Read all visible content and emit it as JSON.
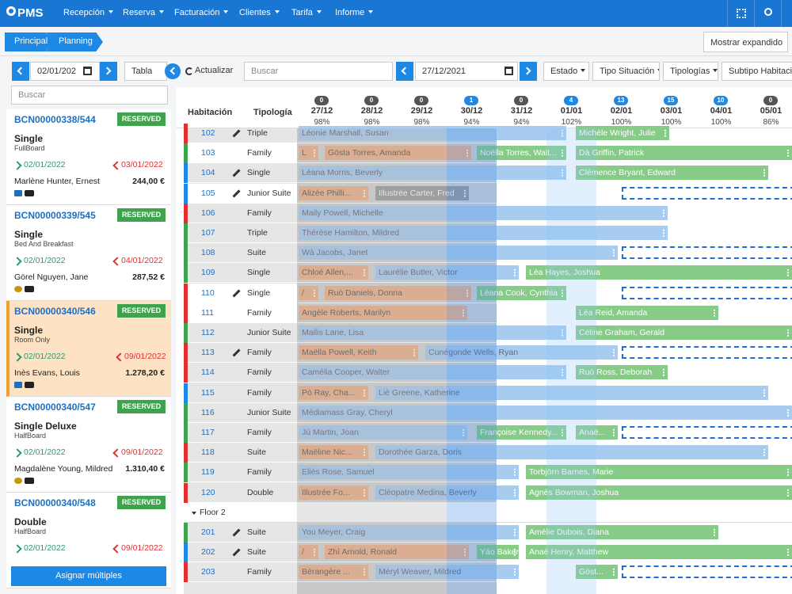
{
  "nav": {
    "logo": "PMS",
    "menu": [
      "Recepción",
      "Reserva",
      "Facturación",
      "Clientes",
      "Tarifa",
      "Informe"
    ]
  },
  "breadcrumb": [
    "Principal",
    "Planning"
  ],
  "expand_button": "Mostrar expandido",
  "sidebar": {
    "date": "02/01/202",
    "search": "Buscar",
    "assign_button": "Asignar múltiples",
    "cards": [
      {
        "code": "BCN00000338/544",
        "status": "RESERVED",
        "room": "Single",
        "board": "FullBoard",
        "checkin": "02/01/2022",
        "checkout": "03/01/2022",
        "guest": "Marlène Hunter, Ernest",
        "amount": "244,00 €"
      },
      {
        "code": "BCN00000339/545",
        "status": "RESERVED",
        "room": "Single",
        "board": "Bed And Breakfast",
        "checkin": "02/01/2022",
        "checkout": "04/01/2022",
        "guest": "Görel Nguyen, Jane",
        "amount": "287,52 €"
      },
      {
        "code": "BCN00000340/546",
        "status": "RESERVED",
        "room": "Single",
        "board": "Room Only",
        "checkin": "02/01/2022",
        "checkout": "09/01/2022",
        "guest": "Inès Evans, Louis",
        "amount": "1.278,20 €"
      },
      {
        "code": "BCN00000340/547",
        "status": "RESERVED",
        "room": "Single Deluxe",
        "board": "HalfBoard",
        "checkin": "02/01/2022",
        "checkout": "09/01/2022",
        "guest": "Magdalène Young, Mildred",
        "amount": "1.310,40 €"
      },
      {
        "code": "BCN00000340/548",
        "status": "RESERVED",
        "room": "Double",
        "board": "HalfBoard",
        "checkin": "02/01/2022",
        "checkout": "09/01/2022"
      }
    ]
  },
  "toolbar": {
    "view": "Tabla",
    "refresh": "Actualizar",
    "search": "Buscar",
    "date": "27/12/2021",
    "filters": [
      "Estado",
      "Tipo Situación",
      "Tipologías",
      "Subtipo Habitació"
    ]
  },
  "planning": {
    "headers": {
      "room": "Habitación",
      "type": "Tipología"
    },
    "days": [
      {
        "count": "0",
        "date": "27/12",
        "occupancy": "98%"
      },
      {
        "count": "0",
        "date": "28/12",
        "occupancy": "98%"
      },
      {
        "count": "0",
        "date": "29/12",
        "occupancy": "98%"
      },
      {
        "count": "1",
        "date": "30/12",
        "occupancy": "94%"
      },
      {
        "count": "0",
        "date": "31/12",
        "occupancy": "94%"
      },
      {
        "count": "4",
        "date": "01/01",
        "occupancy": "102%"
      },
      {
        "count": "13",
        "date": "02/01",
        "occupancy": "100%"
      },
      {
        "count": "15",
        "date": "03/01",
        "occupancy": "100%"
      },
      {
        "count": "10",
        "date": "04/01",
        "occupancy": "100%"
      },
      {
        "count": "0",
        "date": "05/01",
        "occupancy": "86%"
      }
    ],
    "groups": [
      {
        "rooms": [
          {
            "room": "102",
            "type": "Triple",
            "bookings": [
              "Léonie Marshall, Susan",
              "Michèle Wright, Julie"
            ]
          },
          {
            "room": "103",
            "type": "Family",
            "bookings": [
              "L",
              "Gösta Torres, Amanda",
              "Noëlla Torres, Walt...",
              "Dà Griffin, Patrick"
            ]
          },
          {
            "room": "104",
            "type": "Single",
            "bookings": [
              "Léana Morris, Beverly",
              "Clémence Bryant, Edward"
            ]
          },
          {
            "room": "105",
            "type": "Junior Suite",
            "bookings": [
              "Alizée Philli...",
              "Illustrée Carter, Fred"
            ]
          },
          {
            "room": "106",
            "type": "Family",
            "bookings": [
              "Maily Powell, Michelle"
            ]
          },
          {
            "room": "107",
            "type": "Triple",
            "bookings": [
              "Thérèse Hamilton, Mildred"
            ]
          },
          {
            "room": "108",
            "type": "Suite",
            "bookings": [
              "Wà Jacobs, Janet"
            ]
          },
          {
            "room": "109",
            "type": "Single",
            "bookings": [
              "Chloé Allen,...",
              "Laurélie Butler, Victor",
              "Léa Hayes, Joshua"
            ]
          },
          {
            "room": "110",
            "type": "Single",
            "bookings": [
              "/",
              "Ruò Daniels, Donna",
              "Léana Cook, Cynthia"
            ]
          },
          {
            "room": "111",
            "type": "Family",
            "bookings": [
              "Angèle Roberts, Marilyn",
              "Léa Reid, Amanda"
            ]
          },
          {
            "room": "112",
            "type": "Junior Suite",
            "bookings": [
              "Mailis Lane, Lisa",
              "Céline Graham, Gerald"
            ]
          },
          {
            "room": "113",
            "type": "Family",
            "bookings": [
              "Maëlla Powell, Keith",
              "Cunégonde Wells, Ryan"
            ]
          },
          {
            "room": "114",
            "type": "Family",
            "bookings": [
              "Camélia Cooper, Walter",
              "Ruò Ross, Deborah"
            ]
          },
          {
            "room": "115",
            "type": "Family",
            "bookings": [
              "Pò Ray, Cha...",
              "Liè Greene, Katherine"
            ]
          },
          {
            "room": "116",
            "type": "Junior Suite",
            "bookings": [
              "Médiamass Gray, Cheryl"
            ]
          },
          {
            "room": "117",
            "type": "Family",
            "bookings": [
              "Jú Martin, Joan",
              "Françoise Kennedy...",
              "Anaë..."
            ]
          },
          {
            "room": "118",
            "type": "Suite",
            "bookings": [
              "Maëline Nic...",
              "Dorothée Garza, Doris"
            ]
          },
          {
            "room": "119",
            "type": "Family",
            "bookings": [
              "Eliès Rose, Samuel",
              "Torbjörn Barnes, Marie"
            ]
          },
          {
            "room": "120",
            "type": "Double",
            "bookings": [
              "Illustrée Fo...",
              "Cléopatre Medina, Beverly",
              "Agnès Bowman, Joshua"
            ]
          }
        ]
      },
      {
        "label": "Floor 2",
        "rooms": [
          {
            "room": "201",
            "type": "Suite",
            "bookings": [
              "You Meyer, Craig",
              "Amélie Dubois, Diana"
            ]
          },
          {
            "room": "202",
            "type": "Suite",
            "bookings": [
              "/",
              "Zhì Arnold, Ronald",
              "Yáo Baker, Martha",
              "Anaé Henry, Matthew"
            ]
          },
          {
            "room": "203",
            "type": "Family",
            "bookings": [
              "Bérangère ...",
              "Méryl Weaver, Mildred",
              "Göst..."
            ]
          }
        ]
      }
    ]
  }
}
